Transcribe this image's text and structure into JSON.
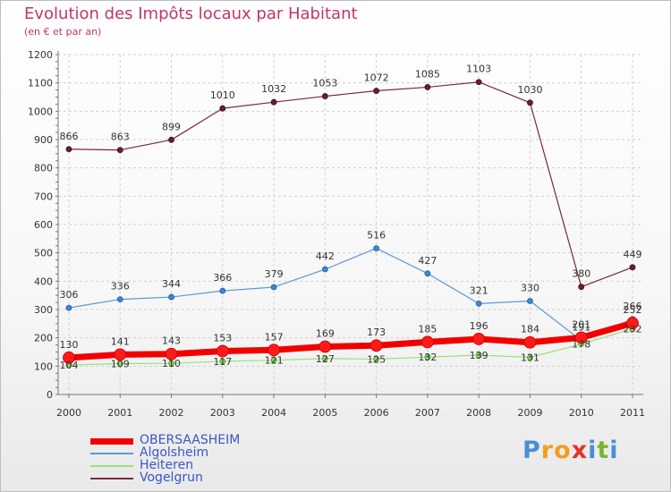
{
  "title": "Evolution des Impôts locaux par Habitant",
  "subtitle": "(en € et par an)",
  "logo": {
    "text": "Proxiti",
    "letters": [
      {
        "ch": "P",
        "color": "#4a8fd4"
      },
      {
        "ch": "r",
        "color": "#f39c1f"
      },
      {
        "ch": "o",
        "color": "#f39c1f"
      },
      {
        "ch": "x",
        "color": "#e2332e"
      },
      {
        "ch": "i",
        "color": "#4a8fd4"
      },
      {
        "ch": "t",
        "color": "#7bb32e"
      },
      {
        "ch": "i",
        "color": "#4a8fd4"
      }
    ]
  },
  "chart_data": {
    "type": "line",
    "title": "Evolution des Impôts locaux par Habitant",
    "subtitle": "(en € et par an)",
    "xlabel": "",
    "ylabel": "",
    "x": [
      "2000",
      "2001",
      "2002",
      "2003",
      "2004",
      "2005",
      "2006",
      "2007",
      "2008",
      "2009",
      "2010",
      "2011"
    ],
    "ylim": [
      0,
      1200
    ],
    "yticks": [
      0,
      100,
      200,
      300,
      400,
      500,
      600,
      700,
      800,
      900,
      1000,
      1100,
      1200
    ],
    "grid": true,
    "legend_position": "bottom-left",
    "series": [
      {
        "name": "Vogelgrun",
        "color": "#7a2a33",
        "values": [
          866,
          863,
          899,
          1010,
          1032,
          1053,
          1072,
          1085,
          1103,
          1030,
          380,
          449
        ],
        "labels": [
          "866",
          "863",
          "899",
          "1010",
          "1032",
          "1053",
          "1072",
          "1085",
          "1103",
          "1030",
          "380",
          "449"
        ]
      },
      {
        "name": "Algolsheim",
        "color": "#5d9ad6",
        "values": [
          306,
          336,
          344,
          366,
          379,
          442,
          516,
          427,
          321,
          330,
          191,
          266
        ],
        "labels": [
          "306",
          "336",
          "344",
          "366",
          "379",
          "442",
          "516",
          "427",
          "321",
          "330",
          "191",
          "266"
        ]
      },
      {
        "name": "Heiteren",
        "color": "#99e07a",
        "values": [
          104,
          109,
          110,
          117,
          121,
          127,
          125,
          132,
          139,
          131,
          178,
          232
        ],
        "labels": [
          "104",
          "109",
          "110",
          "117",
          "121",
          "127",
          "125",
          "132",
          "139",
          "131",
          "178",
          "232"
        ]
      },
      {
        "name": "OBERSAASHEIM",
        "color": "#f20000",
        "values": [
          130,
          141,
          143,
          153,
          157,
          169,
          173,
          185,
          196,
          184,
          201,
          252
        ],
        "labels": [
          "130",
          "141",
          "143",
          "153",
          "157",
          "169",
          "173",
          "185",
          "196",
          "184",
          "201",
          "252"
        ]
      }
    ],
    "legend": [
      "OBERSAASHEIM",
      "Algolsheim",
      "Heiteren",
      "Vogelgrun"
    ]
  }
}
